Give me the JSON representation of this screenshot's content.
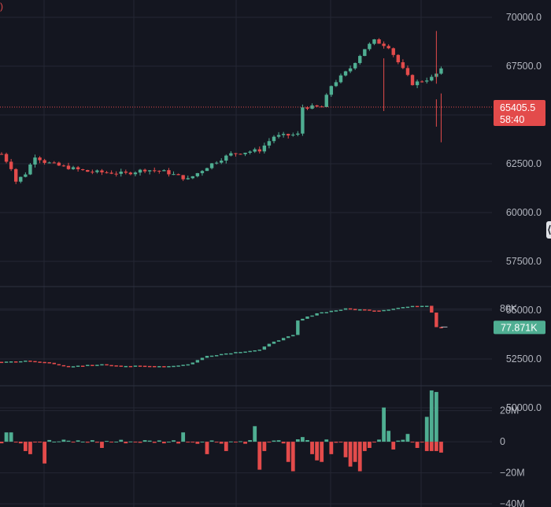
{
  "colors": {
    "background": "#141620",
    "up": "#4fae92",
    "down": "#e34b4b",
    "axis_text": "#b2b5be"
  },
  "corner_glyph": ")",
  "chart_data": [
    {
      "type": "candlestick",
      "y_ticks": [
        70000,
        67500,
        65000,
        62500,
        60000,
        57500,
        55000,
        52500,
        50000
      ],
      "y_tick_labels": [
        "70000.0",
        "67500.0",
        "62500.0",
        "60000.0",
        "57500.0",
        "55000.0",
        "52500.0",
        "50000.0"
      ],
      "ylim": [
        48500,
        71400
      ],
      "last_price": 65405.5,
      "last_price_label": "65405.5",
      "countdown": "58:40",
      "grid": true
    },
    {
      "type": "line-candles",
      "y_tick_labels": [
        "80K"
      ],
      "ylim": [
        71000,
        82600
      ],
      "last_value_label": "77.871K",
      "grid": true
    },
    {
      "type": "bar",
      "y_ticks": [
        20000000,
        0,
        -20000000,
        -40000000
      ],
      "y_tick_labels": [
        "20M",
        "0",
        "−20M",
        "−40M"
      ],
      "ylim": [
        -42000000,
        36000000
      ],
      "grid": true
    }
  ]
}
